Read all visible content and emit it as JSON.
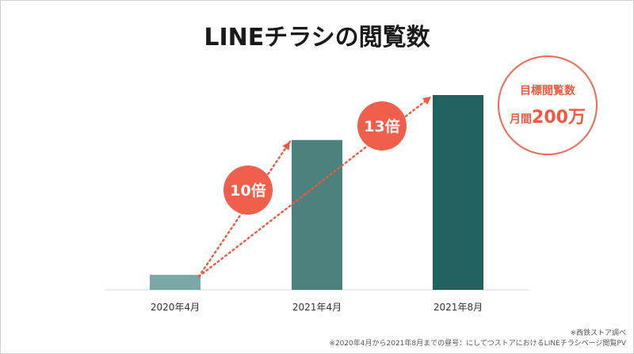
{
  "title": "LINEチラシの閲覧数",
  "chart_data": {
    "type": "bar",
    "categories": [
      "2020年4月",
      "2021年4月",
      "2021年8月"
    ],
    "values": [
      1,
      10,
      13
    ],
    "colors": [
      "#7aa8a6",
      "#4d817d",
      "#1f625e"
    ],
    "growth_badges": [
      "10倍",
      "13倍"
    ],
    "badge_color": "#ef5f4b"
  },
  "target": {
    "line1": "目標閲覧数",
    "prefix": "月間",
    "value": "200万"
  },
  "notes": {
    "line1": "※西鉄ストア調べ",
    "line2": "※2020年4月から2021年8月までの昼号：にしてつストアにおけるLINEチラシページ閲覧PV"
  }
}
